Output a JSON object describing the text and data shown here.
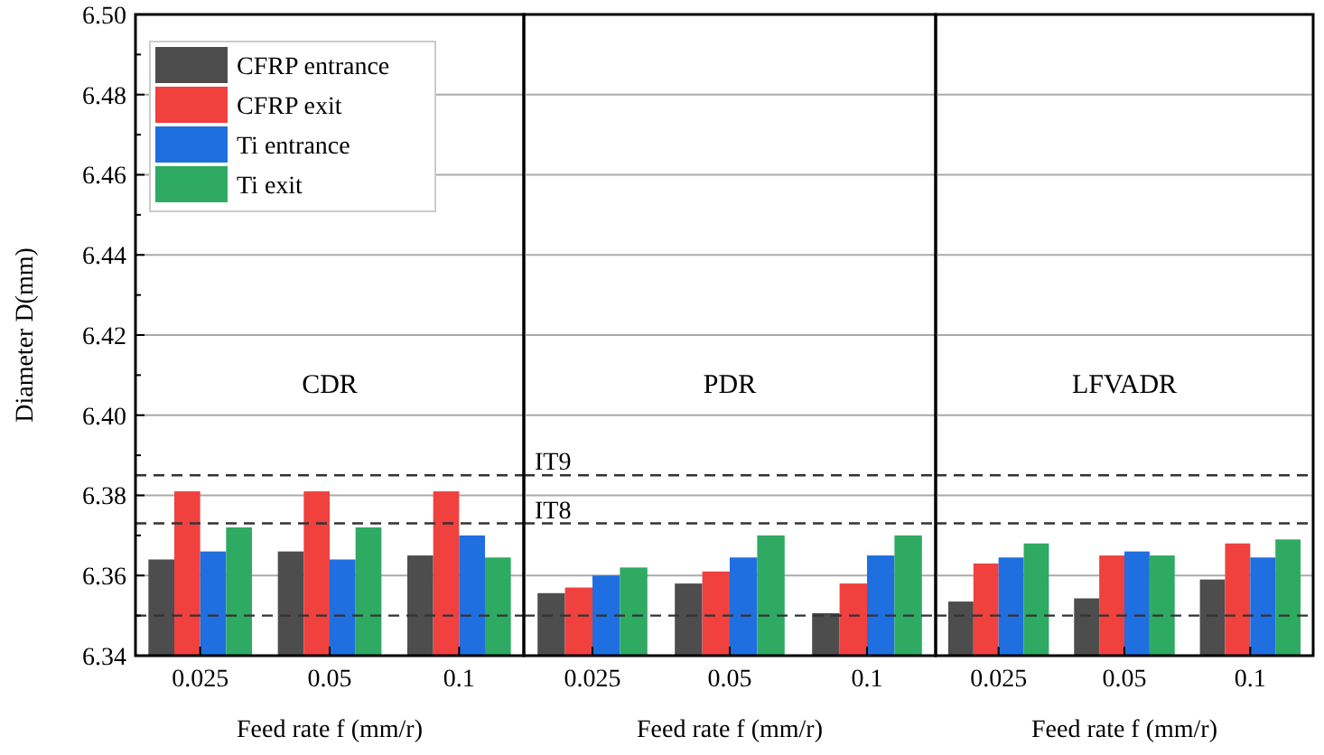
{
  "chart_data": [
    {
      "type": "bar",
      "title": "CDR",
      "xlabel": "Feed rate f (mm/r)",
      "ylabel": "Diameter D(mm)",
      "categories": [
        "0.025",
        "0.05",
        "0.1"
      ],
      "series": [
        {
          "name": "CFRP entrance",
          "color": "#4d4d4d",
          "values": [
            6.364,
            6.366,
            6.365
          ]
        },
        {
          "name": "CFRP exit",
          "color": "#f0413f",
          "values": [
            6.381,
            6.381,
            6.381
          ]
        },
        {
          "name": "Ti entrance",
          "color": "#1f6fe0",
          "values": [
            6.366,
            6.364,
            6.37
          ]
        },
        {
          "name": "Ti exit",
          "color": "#2eaa63",
          "values": [
            6.372,
            6.372,
            6.3645
          ]
        }
      ],
      "ylim": [
        6.34,
        6.5
      ],
      "yticks": [
        6.34,
        {
          "value": 6.35,
          "label": null
        },
        6.36,
        {
          "value": 6.37,
          "label": null
        },
        6.38,
        {
          "value": 6.39,
          "label": null
        },
        {
          "value": 6.4,
          "label": "6.40"
        },
        {
          "value": 6.41,
          "label": null
        },
        6.42,
        {
          "value": 6.43,
          "label": null
        },
        6.44,
        {
          "value": 6.45,
          "label": null
        },
        6.46,
        {
          "value": 6.47,
          "label": null
        },
        6.48,
        {
          "value": 6.49,
          "label": null
        },
        {
          "value": 6.5,
          "label": "6.50"
        }
      ],
      "grid": "y",
      "legend": "top left",
      "ref_lines": [
        {
          "axis": "y",
          "value": 6.385,
          "line_style": "dashed",
          "color": "#333333"
        },
        {
          "axis": "y",
          "value": 6.373,
          "line_style": "dashed",
          "color": "#333333"
        },
        {
          "axis": "y",
          "value": 6.35,
          "line_style": "dashed",
          "color": "#333333"
        }
      ]
    },
    {
      "type": "bar",
      "title": "PDR",
      "xlabel": "Feed rate f (mm/r)",
      "categories": [
        "0.025",
        "0.05",
        "0.1"
      ],
      "series": [
        {
          "color": "#4d4d4d",
          "values": [
            6.3556,
            6.358,
            6.3506
          ]
        },
        {
          "color": "#f0413f",
          "values": [
            6.357,
            6.361,
            6.358
          ]
        },
        {
          "color": "#1f6fe0",
          "values": [
            6.36,
            6.3645,
            6.365
          ]
        },
        {
          "color": "#2eaa63",
          "values": [
            6.362,
            6.37,
            6.37
          ]
        }
      ],
      "ylim": [
        6.34,
        6.5
      ],
      "yticks": [
        6.34,
        6.36,
        6.38,
        6.4,
        6.42,
        6.44,
        6.46,
        6.48,
        6.5
      ],
      "grid": "y",
      "tick_labels": "x",
      "ref_lines": [
        {
          "axis": "y",
          "value": 6.385,
          "label": "IT9",
          "line_style": "dashed",
          "color": "#333333"
        },
        {
          "axis": "y",
          "value": 6.373,
          "label": "IT8",
          "line_style": "dashed",
          "color": "#333333"
        },
        {
          "axis": "y",
          "value": 6.35,
          "line_style": "dashed",
          "color": "#333333"
        }
      ]
    },
    {
      "type": "bar",
      "title": "LFVADR",
      "xlabel": "Feed rate f (mm/r)",
      "categories": [
        "0.025",
        "0.05",
        "0.1"
      ],
      "series": [
        {
          "color": "#4d4d4d",
          "values": [
            6.3535,
            6.3543,
            6.359
          ]
        },
        {
          "color": "#f0413f",
          "values": [
            6.363,
            6.365,
            6.368
          ]
        },
        {
          "color": "#1f6fe0",
          "values": [
            6.3645,
            6.366,
            6.3645
          ]
        },
        {
          "color": "#2eaa63",
          "values": [
            6.368,
            6.365,
            6.369
          ]
        }
      ],
      "ylim": [
        6.34,
        6.5
      ],
      "yticks": [
        6.34,
        6.36,
        6.38,
        6.4,
        6.42,
        6.44,
        6.46,
        6.48,
        6.5
      ],
      "grid": "y",
      "tick_labels": "x",
      "ref_lines": [
        {
          "axis": "y",
          "value": 6.385,
          "line_style": "dashed",
          "color": "#333333"
        },
        {
          "axis": "y",
          "value": 6.373,
          "line_style": "dashed",
          "color": "#333333"
        },
        {
          "axis": "y",
          "value": 6.35,
          "line_style": "dashed",
          "color": "#333333"
        }
      ]
    }
  ]
}
